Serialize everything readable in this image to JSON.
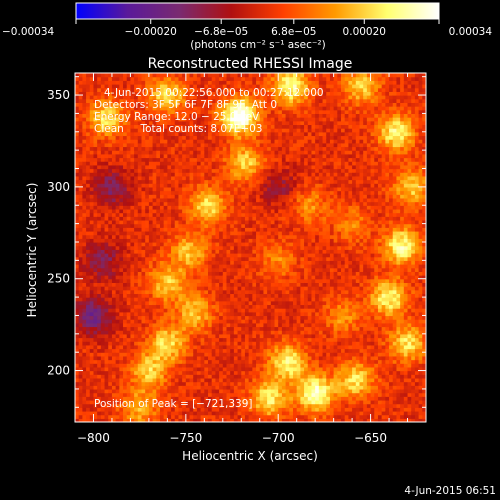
{
  "chart_data": {
    "type": "heatmap",
    "title": "Reconstructed RHESSI Image",
    "xlabel": "Heliocentric X (arcsec)",
    "ylabel": "Heliocentric Y (arcsec)",
    "xlim": [
      -810,
      -620
    ],
    "ylim": [
      172,
      362
    ],
    "x_ticks": [
      -800,
      -750,
      -700,
      -650
    ],
    "y_ticks": [
      200,
      250,
      300,
      350
    ],
    "x_tick_labels": [
      "−800",
      "−750",
      "−700",
      "−650"
    ],
    "y_tick_labels": [
      "200",
      "250",
      "300",
      "350"
    ],
    "colorbar": {
      "range": [
        -0.00034,
        0.00034
      ],
      "tick_values": [
        -0.00034,
        -0.0002,
        -6.8e-05,
        6.8e-05,
        0.0002,
        0.00034
      ],
      "tick_labels": [
        "−0.00034",
        "−0.00020",
        "−6.8e−05",
        "6.8e−05",
        "0.00020",
        "0.00034"
      ],
      "unit": "(photons cm⁻² s⁻¹ asec⁻²)",
      "colors": [
        "#0000ff",
        "#5a1a9a",
        "#7a2a70",
        "#b01010",
        "#ff4000",
        "#ff9a00",
        "#ffff70",
        "#ffffff"
      ]
    },
    "annotations": {
      "time": "4-Jun-2015 00:22:56.000 to 00:27:12.000",
      "detectors": "Detectors: 3F 5F 6F 7F 8F 9F, Att 0",
      "energy": "Energy Range: 12.0 − 25.0 keV",
      "clean": "Clean     Total counts: 8.07E+03",
      "peak": "Position of Peak = [−721,339]"
    },
    "peak": [
      -721,
      339
    ],
    "bright_regions": [
      {
        "x": -721,
        "y": 339,
        "level": 1.0
      },
      {
        "x": -693,
        "y": 355,
        "level": 0.75
      },
      {
        "x": -760,
        "y": 350,
        "level": 0.6
      },
      {
        "x": -793,
        "y": 338,
        "level": 0.6
      },
      {
        "x": -718,
        "y": 313,
        "level": 0.55
      },
      {
        "x": -738,
        "y": 290,
        "level": 0.6
      },
      {
        "x": -748,
        "y": 265,
        "level": 0.5
      },
      {
        "x": -760,
        "y": 248,
        "level": 0.55
      },
      {
        "x": -745,
        "y": 232,
        "level": 0.5
      },
      {
        "x": -760,
        "y": 215,
        "level": 0.6
      },
      {
        "x": -770,
        "y": 200,
        "level": 0.55
      },
      {
        "x": -775,
        "y": 180,
        "level": 0.45
      },
      {
        "x": -695,
        "y": 205,
        "level": 0.7
      },
      {
        "x": -680,
        "y": 188,
        "level": 0.85
      },
      {
        "x": -705,
        "y": 185,
        "level": 0.65
      },
      {
        "x": -658,
        "y": 195,
        "level": 0.6
      },
      {
        "x": -636,
        "y": 330,
        "level": 0.7
      },
      {
        "x": -628,
        "y": 300,
        "level": 0.55
      },
      {
        "x": -633,
        "y": 268,
        "level": 0.75
      },
      {
        "x": -640,
        "y": 240,
        "level": 0.7
      },
      {
        "x": -630,
        "y": 215,
        "level": 0.6
      },
      {
        "x": -655,
        "y": 355,
        "level": 0.55
      },
      {
        "x": -683,
        "y": 290,
        "level": 0.35
      },
      {
        "x": -700,
        "y": 260,
        "level": 0.3
      },
      {
        "x": -660,
        "y": 280,
        "level": 0.3
      },
      {
        "x": -665,
        "y": 230,
        "level": 0.35
      }
    ],
    "low_regions": [
      {
        "x": -800,
        "y": 230,
        "level": -0.55
      },
      {
        "x": -790,
        "y": 300,
        "level": -0.45
      },
      {
        "x": -795,
        "y": 260,
        "level": -0.4
      },
      {
        "x": -700,
        "y": 300,
        "level": -0.3
      }
    ]
  },
  "footer": {
    "timestamp": "4-Jun-2015 06:51"
  }
}
